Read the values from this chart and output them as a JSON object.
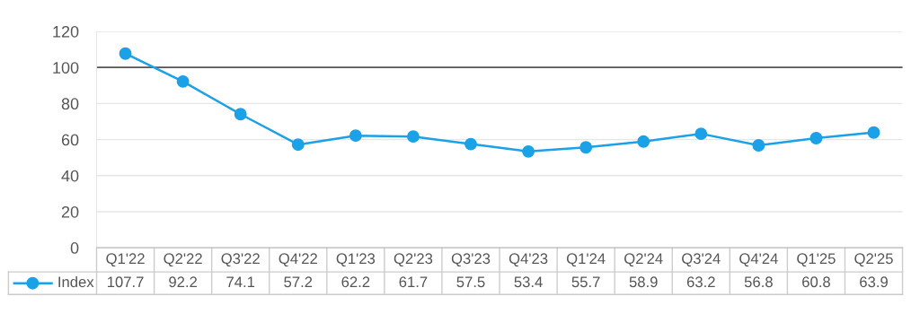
{
  "chart_data": {
    "type": "line",
    "categories": [
      "Q1'22",
      "Q2'22",
      "Q3'22",
      "Q4'22",
      "Q1'23",
      "Q2'23",
      "Q3'23",
      "Q4'23",
      "Q1'24",
      "Q2'24",
      "Q3'24",
      "Q4'24",
      "Q1'25",
      "Q2'25"
    ],
    "series": [
      {
        "name": "Index",
        "color": "#1ba1e8",
        "values": [
          107.7,
          92.2,
          74.1,
          57.2,
          62.2,
          61.7,
          57.5,
          53.4,
          55.7,
          58.9,
          63.2,
          56.8,
          60.8,
          63.9
        ]
      }
    ],
    "ylim": [
      0,
      120
    ],
    "yticks": [
      0,
      20,
      40,
      60,
      80,
      100,
      120
    ],
    "ref_lines": [
      {
        "axis": "y",
        "value": 100,
        "color": "#555555"
      }
    ],
    "grid": "y",
    "marker": "circle",
    "line_style": "solid",
    "legend": "bottom",
    "data_labels": true
  }
}
